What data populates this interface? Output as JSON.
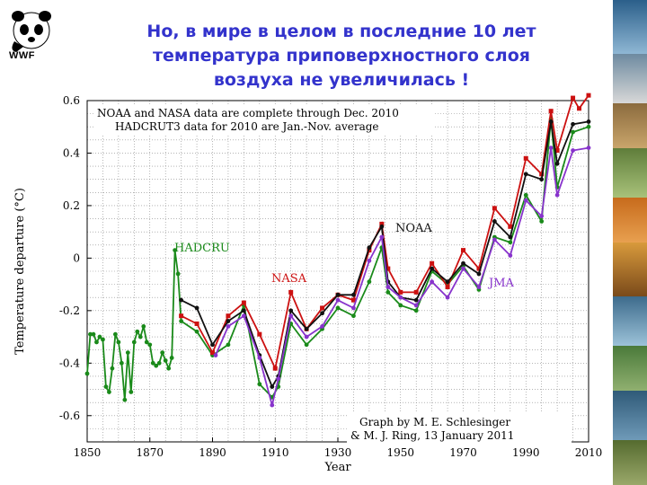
{
  "logo": {
    "text": "WWF"
  },
  "title_lines": [
    "Но, в мире в целом в последние 10 лет",
    "температура приповерхностного слоя",
    "воздуха не увеличилась !"
  ],
  "colors": {
    "title": "#3333cc",
    "hadcru": "#1a8a1a",
    "nasa": "#cc1111",
    "noaa": "#111111",
    "jma": "#8833cc"
  },
  "chart_data": {
    "type": "line",
    "title": "",
    "xlabel": "Year",
    "ylabel": "Temperature departure (°C)",
    "xlim": [
      1850,
      2010
    ],
    "ylim": [
      -0.7,
      0.6
    ],
    "xticks": [
      "1850",
      "1870",
      "1890",
      "1910",
      "1930",
      "1950",
      "1970",
      "1990",
      "2010"
    ],
    "yticks": [
      "0.6",
      "0.4",
      "0.2",
      "0",
      "-0.2",
      "-0.4",
      "-0.6"
    ],
    "grid": true,
    "annotations": {
      "note_line1": "NOAA and NASA data are complete through Dec. 2010",
      "note_line2": "HADCRUT3 data for 2010 are Jan.-Nov. average",
      "credit_line1": "Graph by M. E. Schlesinger",
      "credit_line2": "& M. J. Ring, 13 January 2011"
    },
    "series": [
      {
        "name": "HADCRU",
        "color": "#1a8a1a",
        "x": [
          1850,
          1851,
          1852,
          1853,
          1854,
          1855,
          1856,
          1857,
          1858,
          1859,
          1860,
          1861,
          1862,
          1863,
          1864,
          1865,
          1866,
          1867,
          1868,
          1869,
          1870,
          1871,
          1872,
          1873,
          1874,
          1875,
          1876,
          1877,
          1878,
          1879,
          1880,
          1885,
          1890,
          1895,
          1900,
          1905,
          1909,
          1911,
          1915,
          1920,
          1925,
          1930,
          1935,
          1940,
          1944,
          1946,
          1950,
          1955,
          1960,
          1965,
          1970,
          1975,
          1980,
          1985,
          1990,
          1995,
          1998,
          2000,
          2005,
          2010
        ],
        "y": [
          -0.44,
          -0.29,
          -0.29,
          -0.32,
          -0.3,
          -0.31,
          -0.49,
          -0.51,
          -0.42,
          -0.29,
          -0.32,
          -0.4,
          -0.54,
          -0.36,
          -0.51,
          -0.32,
          -0.28,
          -0.3,
          -0.26,
          -0.32,
          -0.33,
          -0.4,
          -0.41,
          -0.4,
          -0.36,
          -0.39,
          -0.42,
          -0.38,
          0.03,
          -0.06,
          -0.24,
          -0.28,
          -0.37,
          -0.33,
          -0.18,
          -0.48,
          -0.53,
          -0.49,
          -0.25,
          -0.33,
          -0.27,
          -0.19,
          -0.22,
          -0.09,
          0.04,
          -0.13,
          -0.18,
          -0.2,
          -0.05,
          -0.1,
          -0.03,
          -0.12,
          0.08,
          0.06,
          0.24,
          0.14,
          0.53,
          0.27,
          0.48,
          0.5
        ]
      },
      {
        "name": "NASA",
        "color": "#cc1111",
        "x": [
          1880,
          1885,
          1890,
          1895,
          1900,
          1905,
          1910,
          1915,
          1920,
          1925,
          1930,
          1935,
          1940,
          1944,
          1946,
          1950,
          1955,
          1960,
          1965,
          1970,
          1975,
          1980,
          1985,
          1990,
          1995,
          1998,
          2000,
          2005,
          2007,
          2010
        ],
        "y": [
          -0.22,
          -0.25,
          -0.36,
          -0.22,
          -0.17,
          -0.29,
          -0.42,
          -0.13,
          -0.27,
          -0.19,
          -0.14,
          -0.16,
          0.03,
          0.13,
          -0.04,
          -0.13,
          -0.13,
          -0.02,
          -0.11,
          0.03,
          -0.04,
          0.19,
          0.12,
          0.38,
          0.32,
          0.56,
          0.41,
          0.61,
          0.57,
          0.62
        ]
      },
      {
        "name": "NOAA",
        "color": "#111111",
        "x": [
          1880,
          1885,
          1890,
          1895,
          1900,
          1905,
          1909,
          1911,
          1915,
          1920,
          1925,
          1930,
          1935,
          1940,
          1944,
          1946,
          1950,
          1955,
          1960,
          1965,
          1970,
          1975,
          1980,
          1985,
          1990,
          1995,
          1998,
          2000,
          2005,
          2010
        ],
        "y": [
          -0.16,
          -0.19,
          -0.33,
          -0.24,
          -0.2,
          -0.37,
          -0.49,
          -0.45,
          -0.2,
          -0.27,
          -0.21,
          -0.14,
          -0.14,
          0.04,
          0.12,
          -0.09,
          -0.15,
          -0.16,
          -0.04,
          -0.09,
          -0.02,
          -0.06,
          0.14,
          0.08,
          0.32,
          0.3,
          0.52,
          0.36,
          0.51,
          0.52
        ]
      },
      {
        "name": "JMA",
        "color": "#8833cc",
        "x": [
          1891,
          1895,
          1900,
          1905,
          1909,
          1911,
          1915,
          1920,
          1925,
          1930,
          1935,
          1940,
          1944,
          1946,
          1950,
          1955,
          1960,
          1965,
          1970,
          1975,
          1980,
          1985,
          1990,
          1995,
          1998,
          2000,
          2005,
          2010
        ],
        "y": [
          -0.37,
          -0.26,
          -0.22,
          -0.38,
          -0.56,
          -0.46,
          -0.22,
          -0.3,
          -0.26,
          -0.16,
          -0.19,
          -0.01,
          0.08,
          -0.11,
          -0.15,
          -0.18,
          -0.09,
          -0.15,
          -0.04,
          -0.11,
          0.07,
          0.01,
          0.22,
          0.16,
          0.42,
          0.24,
          0.41,
          0.42
        ]
      }
    ]
  }
}
